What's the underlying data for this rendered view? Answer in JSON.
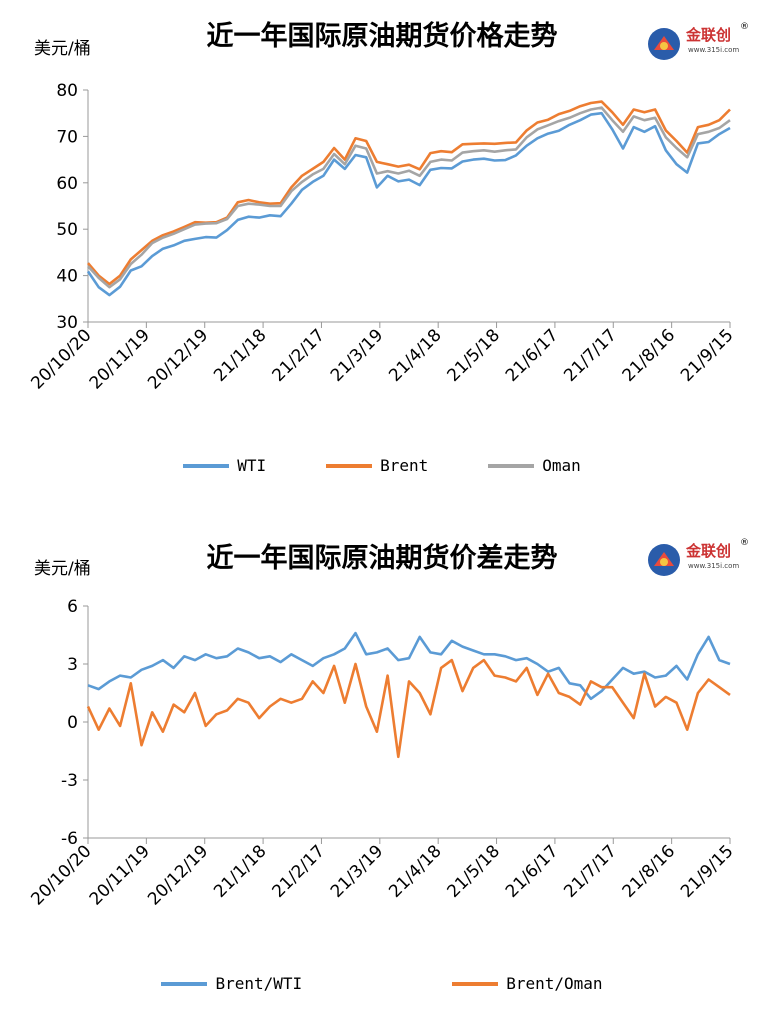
{
  "logo": {
    "name": "金联创",
    "url": "www.315i.com",
    "mark": "®"
  },
  "chart_data": [
    {
      "type": "line",
      "title": "近一年国际原油期货价格走势",
      "ylabel": "美元/桶",
      "ylim": [
        30,
        80
      ],
      "yticks": [
        30,
        40,
        50,
        60,
        70,
        80
      ],
      "xtick_labels": [
        "20/10/20",
        "20/11/19",
        "20/12/19",
        "21/1/18",
        "21/2/17",
        "21/3/19",
        "21/4/18",
        "21/5/18",
        "21/6/17",
        "21/7/17",
        "21/8/16",
        "21/9/15"
      ],
      "grid": false,
      "legend": "bottom",
      "series": [
        {
          "name": "WTI",
          "color": "#5b9bd5",
          "values": [
            40.9,
            37.5,
            35.8,
            37.6,
            41.1,
            42.0,
            44.2,
            45.8,
            46.5,
            47.5,
            47.9,
            48.3,
            48.2,
            49.8,
            52.0,
            52.7,
            52.5,
            53.0,
            52.8,
            55.5,
            58.5,
            60.2,
            61.5,
            65.0,
            63.0,
            66.0,
            65.5,
            59.0,
            61.5,
            60.3,
            60.7,
            59.5,
            62.8,
            63.2,
            63.1,
            64.6,
            65.0,
            65.2,
            64.8,
            64.9,
            65.9,
            68.0,
            69.6,
            70.6,
            71.2,
            72.5,
            73.5,
            74.7,
            75.0,
            71.5,
            67.4,
            72.0,
            71.0,
            72.2,
            67.0,
            64.0,
            62.2,
            68.5,
            68.8,
            70.5,
            71.8
          ]
        },
        {
          "name": "Brent",
          "color": "#ed7d31",
          "values": [
            42.7,
            40.0,
            38.2,
            40.0,
            43.5,
            45.5,
            47.5,
            48.7,
            49.5,
            50.5,
            51.5,
            51.4,
            51.5,
            52.5,
            55.8,
            56.3,
            55.8,
            55.5,
            55.6,
            59.0,
            61.5,
            63.0,
            64.5,
            67.5,
            65.0,
            69.6,
            69.0,
            64.5,
            64.0,
            63.5,
            63.9,
            62.9,
            66.4,
            66.8,
            66.6,
            68.3,
            68.4,
            68.5,
            68.4,
            68.6,
            68.7,
            71.3,
            73.0,
            73.6,
            74.8,
            75.5,
            76.5,
            77.2,
            77.5,
            75.2,
            72.5,
            75.8,
            75.2,
            75.8,
            71.3,
            69.0,
            66.5,
            72.0,
            72.5,
            73.5,
            75.8
          ]
        },
        {
          "name": "Oman",
          "color": "#a5a5a5",
          "values": [
            42.0,
            39.5,
            37.5,
            39.2,
            42.5,
            44.5,
            47.0,
            48.2,
            49.0,
            50.0,
            51.0,
            51.2,
            51.3,
            52.2,
            55.0,
            55.5,
            55.3,
            55.0,
            55.0,
            58.2,
            60.2,
            61.8,
            63.0,
            66.2,
            64.0,
            68.0,
            67.4,
            62.0,
            62.5,
            62.0,
            62.6,
            61.5,
            64.5,
            65.0,
            64.8,
            66.5,
            66.8,
            67.0,
            66.7,
            67.0,
            67.2,
            69.8,
            71.5,
            72.4,
            73.3,
            74.0,
            75.0,
            75.8,
            76.2,
            73.5,
            71.0,
            74.3,
            73.5,
            74.0,
            69.8,
            67.5,
            65.5,
            70.5,
            71.0,
            71.8,
            73.5
          ]
        }
      ]
    },
    {
      "type": "line",
      "title": "近一年国际原油期货价差走势",
      "ylabel": "美元/桶",
      "ylim": [
        -6,
        6
      ],
      "yticks": [
        -6,
        -3,
        0,
        3,
        6
      ],
      "xtick_labels": [
        "20/10/20",
        "20/11/19",
        "20/12/19",
        "21/1/18",
        "21/2/17",
        "21/3/19",
        "21/4/18",
        "21/5/18",
        "21/6/17",
        "21/7/17",
        "21/8/16",
        "21/9/15"
      ],
      "grid": false,
      "legend": "bottom",
      "series": [
        {
          "name": "Brent/WTI",
          "color": "#5b9bd5",
          "values": [
            1.9,
            1.7,
            2.1,
            2.4,
            2.3,
            2.7,
            2.9,
            3.2,
            2.8,
            3.4,
            3.2,
            3.5,
            3.3,
            3.4,
            3.8,
            3.6,
            3.3,
            3.4,
            3.1,
            3.5,
            3.2,
            2.9,
            3.3,
            3.5,
            3.8,
            4.6,
            3.5,
            3.6,
            3.8,
            3.2,
            3.3,
            4.4,
            3.6,
            3.5,
            4.2,
            3.9,
            3.7,
            3.5,
            3.5,
            3.4,
            3.2,
            3.3,
            3.0,
            2.6,
            2.8,
            2.0,
            1.9,
            1.2,
            1.6,
            2.2,
            2.8,
            2.5,
            2.6,
            2.3,
            2.4,
            2.9,
            2.2,
            3.5,
            4.4,
            3.2,
            3.0
          ]
        },
        {
          "name": "Brent/Oman",
          "color": "#ed7d31",
          "values": [
            0.8,
            -0.4,
            0.7,
            -0.2,
            2.0,
            -1.2,
            0.5,
            -0.5,
            0.9,
            0.5,
            1.5,
            -0.2,
            0.4,
            0.6,
            1.2,
            1.0,
            0.2,
            0.8,
            1.2,
            1.0,
            1.2,
            2.1,
            1.5,
            2.9,
            1.0,
            3.0,
            0.8,
            -0.5,
            2.4,
            -1.8,
            2.1,
            1.5,
            0.4,
            2.8,
            3.2,
            1.6,
            2.8,
            3.2,
            2.4,
            2.3,
            2.1,
            2.8,
            1.4,
            2.5,
            1.5,
            1.3,
            0.9,
            2.1,
            1.8,
            1.8,
            1.0,
            0.2,
            2.5,
            0.8,
            1.3,
            1.0,
            -0.4,
            1.5,
            2.2,
            1.8,
            1.4
          ]
        }
      ]
    }
  ]
}
